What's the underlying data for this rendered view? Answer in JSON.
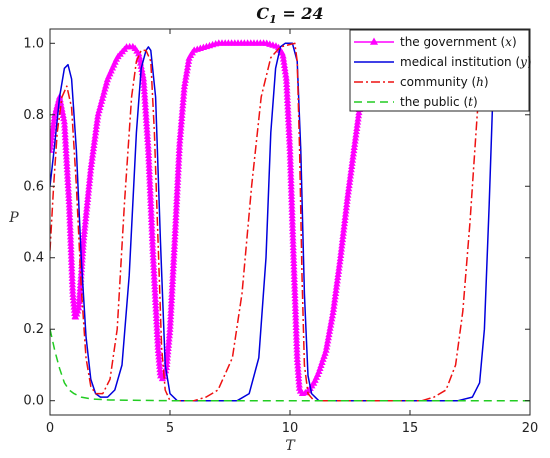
{
  "chart_data": {
    "type": "line",
    "title": "C_1 = 24",
    "title_base": "C",
    "title_sub": "1",
    "title_rest": " = 24",
    "xlabel": "T",
    "ylabel": "P",
    "xlim": [
      0,
      20
    ],
    "ylim": [
      -0.04,
      1.04
    ],
    "xticks": [
      0,
      5,
      10,
      15,
      20
    ],
    "yticks": [
      0,
      0.2,
      0.4,
      0.6,
      0.8,
      1.0
    ],
    "xtick_labels": [
      "0",
      "5",
      "10",
      "15",
      "20"
    ],
    "ytick_labels": [
      "0.0",
      "0.2",
      "0.4",
      "0.6",
      "0.8",
      "1.0"
    ],
    "grid": false,
    "legend_position": "top-right",
    "series": [
      {
        "name": "the government (x)",
        "label_text": "the government ",
        "label_var": "x",
        "color": "#ff00ff",
        "style": "solid-triangle-markers",
        "points": [
          [
            0,
            0.7
          ],
          [
            0.2,
            0.8
          ],
          [
            0.4,
            0.85
          ],
          [
            0.6,
            0.78
          ],
          [
            0.8,
            0.55
          ],
          [
            0.95,
            0.3
          ],
          [
            1.05,
            0.23
          ],
          [
            1.2,
            0.26
          ],
          [
            1.4,
            0.45
          ],
          [
            1.7,
            0.65
          ],
          [
            2.0,
            0.8
          ],
          [
            2.4,
            0.9
          ],
          [
            2.8,
            0.96
          ],
          [
            3.2,
            0.99
          ],
          [
            3.5,
            0.99
          ],
          [
            3.7,
            0.97
          ],
          [
            3.9,
            0.9
          ],
          [
            4.1,
            0.7
          ],
          [
            4.3,
            0.4
          ],
          [
            4.5,
            0.15
          ],
          [
            4.6,
            0.07
          ],
          [
            4.7,
            0.06
          ],
          [
            4.85,
            0.09
          ],
          [
            5.0,
            0.2
          ],
          [
            5.2,
            0.45
          ],
          [
            5.4,
            0.72
          ],
          [
            5.6,
            0.88
          ],
          [
            5.8,
            0.96
          ],
          [
            6.0,
            0.98
          ],
          [
            6.5,
            0.99
          ],
          [
            7.0,
            1.0
          ],
          [
            8.0,
            1.0
          ],
          [
            9.0,
            1.0
          ],
          [
            9.5,
            0.99
          ],
          [
            9.7,
            0.97
          ],
          [
            9.85,
            0.9
          ],
          [
            10.0,
            0.7
          ],
          [
            10.15,
            0.4
          ],
          [
            10.3,
            0.12
          ],
          [
            10.4,
            0.03
          ],
          [
            10.5,
            0.02
          ],
          [
            10.6,
            0.02
          ],
          [
            10.8,
            0.03
          ],
          [
            11.0,
            0.05
          ],
          [
            11.2,
            0.08
          ],
          [
            11.5,
            0.14
          ],
          [
            11.8,
            0.25
          ],
          [
            12.1,
            0.4
          ],
          [
            12.4,
            0.57
          ],
          [
            12.7,
            0.72
          ],
          [
            12.9,
            0.82
          ],
          [
            13.1,
            0.88
          ]
        ]
      },
      {
        "name": "medical institution (y)",
        "label_text": "medical institution ",
        "label_var": "y",
        "color": "#0000dd",
        "style": "solid",
        "points": [
          [
            0,
            0.6
          ],
          [
            0.2,
            0.72
          ],
          [
            0.4,
            0.85
          ],
          [
            0.6,
            0.93
          ],
          [
            0.75,
            0.94
          ],
          [
            0.9,
            0.9
          ],
          [
            1.1,
            0.7
          ],
          [
            1.3,
            0.4
          ],
          [
            1.5,
            0.18
          ],
          [
            1.7,
            0.06
          ],
          [
            1.9,
            0.02
          ],
          [
            2.1,
            0.01
          ],
          [
            2.4,
            0.01
          ],
          [
            2.7,
            0.03
          ],
          [
            3.0,
            0.1
          ],
          [
            3.3,
            0.35
          ],
          [
            3.6,
            0.75
          ],
          [
            3.8,
            0.93
          ],
          [
            4.0,
            0.98
          ],
          [
            4.1,
            0.99
          ],
          [
            4.2,
            0.98
          ],
          [
            4.4,
            0.85
          ],
          [
            4.6,
            0.45
          ],
          [
            4.8,
            0.1
          ],
          [
            5.0,
            0.02
          ],
          [
            5.3,
            0.0
          ],
          [
            6.0,
            0.0
          ],
          [
            7.0,
            0.0
          ],
          [
            7.8,
            0.0
          ],
          [
            8.3,
            0.02
          ],
          [
            8.7,
            0.12
          ],
          [
            9.0,
            0.4
          ],
          [
            9.2,
            0.75
          ],
          [
            9.4,
            0.93
          ],
          [
            9.6,
            0.99
          ],
          [
            9.8,
            1.0
          ],
          [
            10.1,
            1.0
          ],
          [
            10.3,
            0.95
          ],
          [
            10.45,
            0.7
          ],
          [
            10.6,
            0.3
          ],
          [
            10.75,
            0.07
          ],
          [
            10.9,
            0.02
          ],
          [
            11.2,
            0.0
          ],
          [
            13.0,
            0.0
          ],
          [
            15.0,
            0.0
          ],
          [
            17.0,
            0.0
          ],
          [
            17.6,
            0.01
          ],
          [
            17.9,
            0.05
          ],
          [
            18.1,
            0.2
          ],
          [
            18.3,
            0.55
          ],
          [
            18.45,
            0.85
          ],
          [
            18.55,
            1.0
          ]
        ]
      },
      {
        "name": "community (h)",
        "label_text": "community ",
        "label_var": "h",
        "color": "#ee1111",
        "style": "dashdot",
        "points": [
          [
            0,
            0.42
          ],
          [
            0.15,
            0.6
          ],
          [
            0.3,
            0.75
          ],
          [
            0.5,
            0.85
          ],
          [
            0.7,
            0.88
          ],
          [
            0.9,
            0.82
          ],
          [
            1.1,
            0.6
          ],
          [
            1.3,
            0.32
          ],
          [
            1.5,
            0.12
          ],
          [
            1.7,
            0.04
          ],
          [
            1.9,
            0.02
          ],
          [
            2.2,
            0.02
          ],
          [
            2.5,
            0.06
          ],
          [
            2.8,
            0.2
          ],
          [
            3.1,
            0.55
          ],
          [
            3.4,
            0.85
          ],
          [
            3.6,
            0.95
          ],
          [
            3.8,
            0.98
          ],
          [
            4.0,
            0.98
          ],
          [
            4.2,
            0.95
          ],
          [
            4.35,
            0.75
          ],
          [
            4.5,
            0.45
          ],
          [
            4.65,
            0.15
          ],
          [
            4.8,
            0.03
          ],
          [
            5.0,
            0.0
          ],
          [
            6.0,
            0.0
          ],
          [
            6.5,
            0.01
          ],
          [
            7.0,
            0.03
          ],
          [
            7.6,
            0.12
          ],
          [
            8.0,
            0.3
          ],
          [
            8.4,
            0.6
          ],
          [
            8.8,
            0.85
          ],
          [
            9.2,
            0.96
          ],
          [
            9.6,
            0.99
          ],
          [
            10.2,
            1.0
          ],
          [
            10.3,
            0.95
          ],
          [
            10.4,
            0.7
          ],
          [
            10.5,
            0.35
          ],
          [
            10.6,
            0.1
          ],
          [
            10.75,
            0.02
          ],
          [
            11.0,
            0.0
          ],
          [
            14.0,
            0.0
          ],
          [
            15.5,
            0.0
          ],
          [
            16.0,
            0.01
          ],
          [
            16.5,
            0.03
          ],
          [
            16.9,
            0.1
          ],
          [
            17.2,
            0.25
          ],
          [
            17.5,
            0.5
          ],
          [
            17.8,
            0.8
          ],
          [
            18.0,
            0.95
          ],
          [
            18.1,
            1.0
          ]
        ]
      },
      {
        "name": "the public (t)",
        "label_text": "the public ",
        "label_var": "t",
        "color": "#22cc22",
        "style": "dashed",
        "points": [
          [
            0,
            0.2
          ],
          [
            0.2,
            0.14
          ],
          [
            0.4,
            0.09
          ],
          [
            0.6,
            0.05
          ],
          [
            0.8,
            0.03
          ],
          [
            1.0,
            0.02
          ],
          [
            1.3,
            0.01
          ],
          [
            1.7,
            0.005
          ],
          [
            2.5,
            0.002
          ],
          [
            5.0,
            0.0
          ],
          [
            10.0,
            0.0
          ],
          [
            15.0,
            0.0
          ],
          [
            20.0,
            0.0
          ]
        ]
      }
    ]
  }
}
